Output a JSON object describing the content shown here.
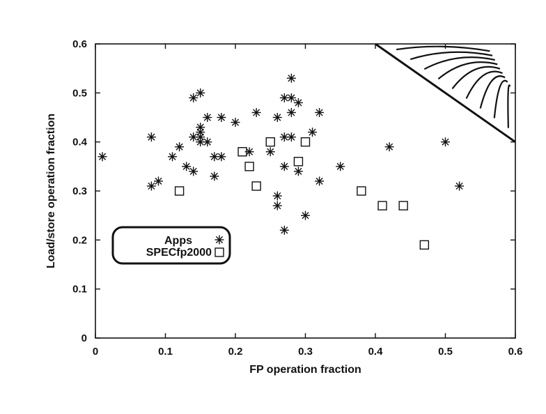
{
  "chart_data": {
    "type": "scatter",
    "title": "",
    "xlabel": "FP operation fraction",
    "ylabel": "Load/store operation fraction",
    "xlim": [
      0,
      0.6
    ],
    "ylim": [
      0,
      0.6
    ],
    "xticks": [
      "0",
      "0.1",
      "0.2",
      "0.3",
      "0.4",
      "0.5",
      "0.6"
    ],
    "yticks": [
      "0",
      "0.1",
      "0.2",
      "0.3",
      "0.4",
      "0.5",
      "0.6"
    ],
    "grid": false,
    "legend_position": "left",
    "shaded_region": {
      "from": [
        0.4,
        0.6
      ],
      "to": [
        0.6,
        0.4
      ]
    },
    "series": [
      {
        "name": "Apps",
        "marker": "asterisk",
        "points": [
          [
            0.01,
            0.37
          ],
          [
            0.08,
            0.41
          ],
          [
            0.08,
            0.31
          ],
          [
            0.09,
            0.32
          ],
          [
            0.11,
            0.37
          ],
          [
            0.12,
            0.39
          ],
          [
            0.13,
            0.35
          ],
          [
            0.14,
            0.34
          ],
          [
            0.14,
            0.41
          ],
          [
            0.14,
            0.49
          ],
          [
            0.15,
            0.5
          ],
          [
            0.15,
            0.43
          ],
          [
            0.15,
            0.42
          ],
          [
            0.15,
            0.41
          ],
          [
            0.15,
            0.4
          ],
          [
            0.16,
            0.4
          ],
          [
            0.16,
            0.45
          ],
          [
            0.17,
            0.37
          ],
          [
            0.17,
            0.33
          ],
          [
            0.18,
            0.37
          ],
          [
            0.18,
            0.45
          ],
          [
            0.2,
            0.44
          ],
          [
            0.22,
            0.38
          ],
          [
            0.23,
            0.46
          ],
          [
            0.25,
            0.38
          ],
          [
            0.26,
            0.29
          ],
          [
            0.26,
            0.27
          ],
          [
            0.26,
            0.45
          ],
          [
            0.27,
            0.49
          ],
          [
            0.27,
            0.41
          ],
          [
            0.27,
            0.35
          ],
          [
            0.27,
            0.22
          ],
          [
            0.28,
            0.53
          ],
          [
            0.28,
            0.49
          ],
          [
            0.28,
            0.46
          ],
          [
            0.28,
            0.41
          ],
          [
            0.29,
            0.48
          ],
          [
            0.29,
            0.34
          ],
          [
            0.3,
            0.25
          ],
          [
            0.31,
            0.42
          ],
          [
            0.32,
            0.46
          ],
          [
            0.32,
            0.32
          ],
          [
            0.35,
            0.35
          ],
          [
            0.42,
            0.39
          ],
          [
            0.5,
            0.4
          ],
          [
            0.52,
            0.31
          ]
        ]
      },
      {
        "name": "SPECfp2000",
        "marker": "square",
        "points": [
          [
            0.12,
            0.3
          ],
          [
            0.21,
            0.38
          ],
          [
            0.22,
            0.35
          ],
          [
            0.23,
            0.31
          ],
          [
            0.25,
            0.4
          ],
          [
            0.29,
            0.36
          ],
          [
            0.3,
            0.4
          ],
          [
            0.38,
            0.3
          ],
          [
            0.41,
            0.27
          ],
          [
            0.44,
            0.27
          ],
          [
            0.47,
            0.19
          ]
        ]
      }
    ]
  }
}
